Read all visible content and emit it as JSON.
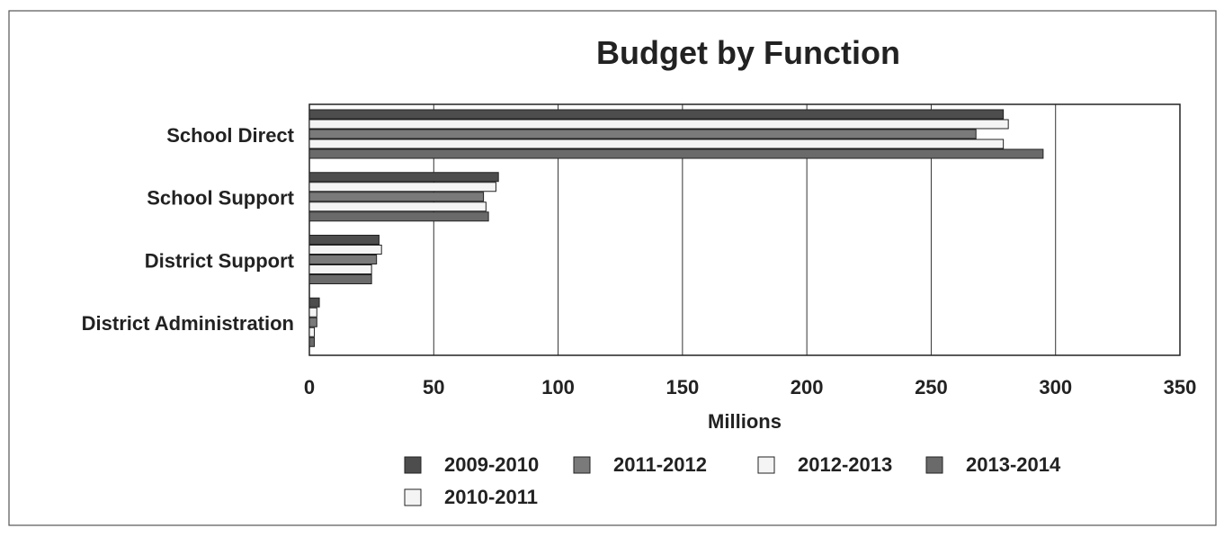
{
  "chart_data": {
    "type": "bar",
    "orientation": "horizontal",
    "title": "Budget by Function",
    "xlabel": "Millions",
    "ylabel": "",
    "xlim": [
      0,
      350
    ],
    "xticks": [
      "0",
      "50",
      "100",
      "150",
      "200",
      "250",
      "300",
      "350"
    ],
    "grid": true,
    "legend_position": "bottom",
    "categories": [
      "School Direct",
      "School Support",
      "District Support",
      "District Administration"
    ],
    "series": [
      {
        "name": "2009-2010",
        "color": "#4d4d4d",
        "values": [
          279,
          76,
          28,
          4
        ]
      },
      {
        "name": "2010-2011",
        "color": "#f4f4f4",
        "values": [
          281,
          75,
          29,
          3
        ]
      },
      {
        "name": "2011-2012",
        "color": "#7a7a7a",
        "values": [
          268,
          70,
          27,
          3
        ]
      },
      {
        "name": "2012-2013",
        "color": "#f4f4f4",
        "values": [
          279,
          71,
          25,
          2
        ]
      },
      {
        "name": "2013-2014",
        "color": "#6a6a6a",
        "values": [
          295,
          72,
          25,
          2
        ]
      }
    ],
    "legend_order": [
      "2009-2010",
      "2011-2012",
      "2012-2013",
      "2013-2014",
      "2010-2011"
    ]
  }
}
